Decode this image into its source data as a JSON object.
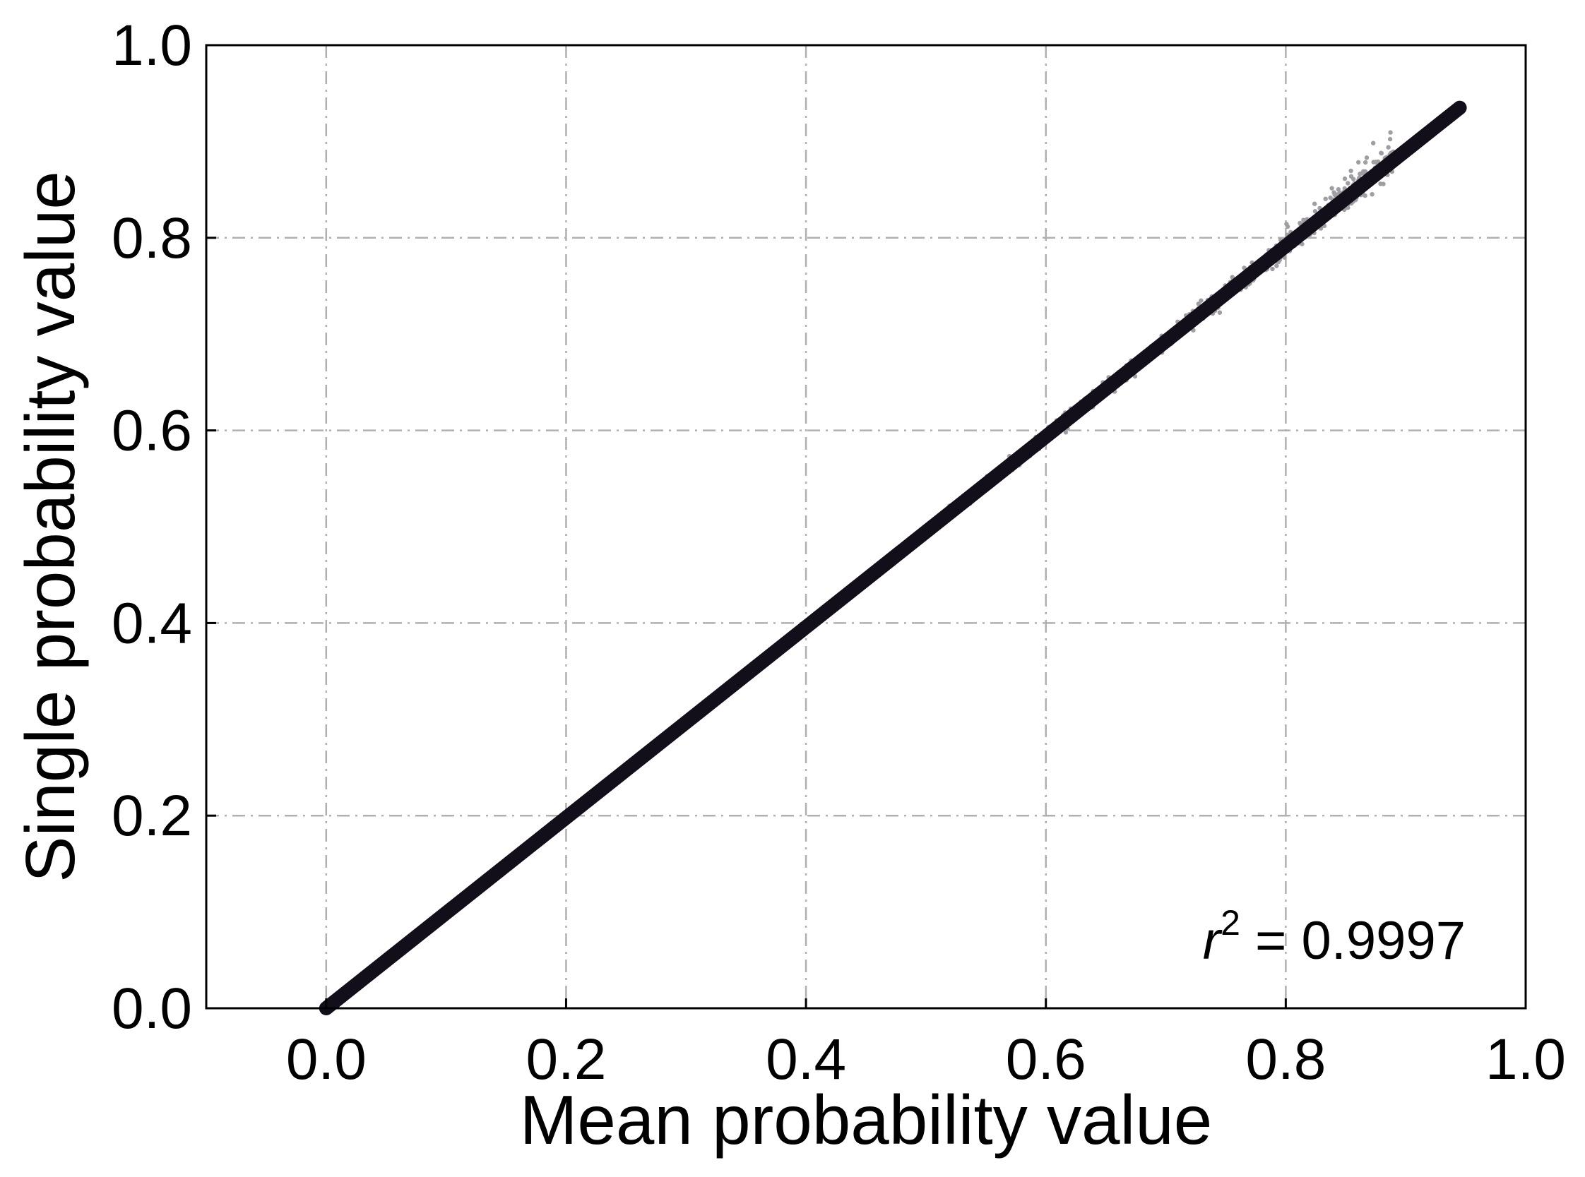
{
  "chart_data": {
    "type": "scatter",
    "title": "",
    "xlabel": "Mean probability value",
    "ylabel": "Single probability value",
    "xlim": [
      -0.1,
      1.0
    ],
    "ylim": [
      0.0,
      1.0
    ],
    "xticks": [
      "0.0",
      "0.2",
      "0.4",
      "0.6",
      "0.8",
      "1.0"
    ],
    "yticks": [
      "0.0",
      "0.2",
      "0.4",
      "0.6",
      "0.8",
      "1.0"
    ],
    "grid": true,
    "annotation": {
      "var": "r",
      "exp": "2",
      "text": " = 0.9997"
    },
    "colors": {
      "scatter": "#9e9ea3",
      "line": "#120e1a"
    },
    "series": [
      {
        "type": "scatter",
        "x_range": [
          0.0,
          0.89
        ]
      },
      {
        "type": "line",
        "x": [
          0.0,
          0.945
        ],
        "y": [
          0.0,
          0.935
        ]
      }
    ]
  }
}
